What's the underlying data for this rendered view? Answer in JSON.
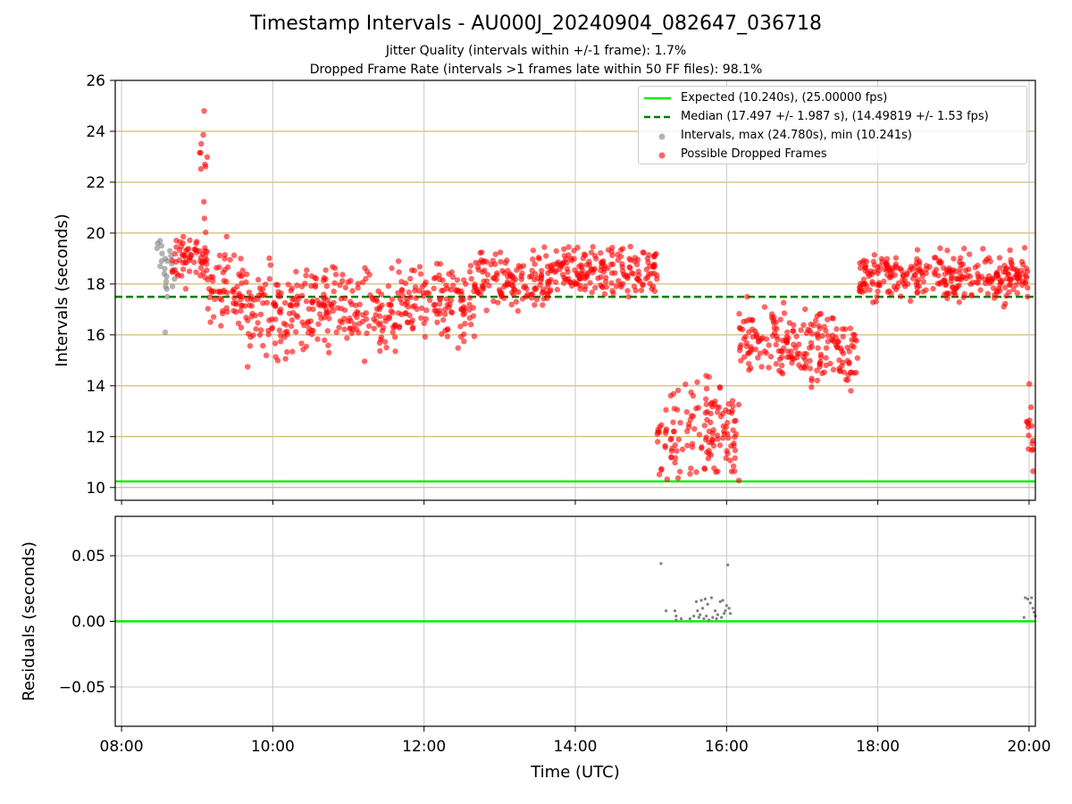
{
  "title": "Timestamp Intervals - AU000J_20240904_082647_036718",
  "subtitle_1": "Jitter Quality (intervals within +/-1 frame): 1.7%",
  "subtitle_2": "Dropped Frame Rate (intervals >1 frames late within 50 FF files): 98.1%",
  "colors": {
    "expected": "#00ee00",
    "median": "#007f00",
    "grid_major": "#c8a850",
    "grid": "#c8c8c8",
    "normal": "#808080",
    "dropped": "#ff0000"
  },
  "chart_data": [
    {
      "type": "scatter",
      "ylabel": "Intervals (seconds)",
      "ylim": [
        9.5,
        26
      ],
      "xlim": [
        "07:55",
        "20:05"
      ],
      "ytick_values": [
        10,
        12,
        14,
        16,
        18,
        20,
        22,
        24,
        26
      ],
      "ytick_labels": [
        "10",
        "12",
        "14",
        "16",
        "18",
        "20",
        "22",
        "24",
        "26"
      ],
      "grid": true,
      "legend_position": "top-right",
      "legend": [
        "Expected (10.240s), (25.00000 fps)",
        "Median (17.497 +/- 1.987 s), (14.49819 +/- 1.53 fps)",
        "Intervals, max (24.780s), min (10.241s)",
        "Possible Dropped Frames"
      ],
      "lines": [
        {
          "name": "Expected",
          "y": 10.24,
          "style": "solid",
          "color": "#00ee00"
        },
        {
          "name": "Median",
          "y": 17.497,
          "style": "dashed",
          "color": "#007f00"
        }
      ],
      "series": [
        {
          "name": "Intervals",
          "color": "#808080",
          "points": [
            [
              "08:28",
              19.6
            ],
            [
              "08:29",
              19.4
            ],
            [
              "08:30",
              19.7
            ],
            [
              "08:30",
              19.2
            ],
            [
              "08:31",
              18.9
            ],
            [
              "08:31",
              19.5
            ],
            [
              "08:32",
              18.7
            ],
            [
              "08:33",
              19.0
            ],
            [
              "08:33",
              18.4
            ],
            [
              "08:34",
              18.1
            ],
            [
              "08:34",
              17.9
            ],
            [
              "08:35",
              18.6
            ],
            [
              "08:35",
              17.5
            ],
            [
              "08:36",
              16.1
            ],
            [
              "08:36",
              18.9
            ],
            [
              "08:37",
              17.8
            ],
            [
              "08:37",
              18.3
            ],
            [
              "08:38",
              19.1
            ],
            [
              "08:39",
              18.5
            ],
            [
              "08:39",
              17.9
            ],
            [
              "08:40",
              19.3
            ],
            [
              "08:40",
              18.8
            ],
            [
              "08:41",
              18.2
            ]
          ]
        },
        {
          "name": "Possible Dropped Frames",
          "color": "#ff0000",
          "segments": [
            {
              "t0": "08:40",
              "t1": "09:08",
              "center": 19.0,
              "spread": 0.9
            },
            {
              "t0": "09:02",
              "t1": "09:08",
              "center": 22.0,
              "spread": 2.6
            },
            {
              "t0": "09:08",
              "t1": "09:40",
              "center": 17.8,
              "spread": 1.3
            },
            {
              "t0": "09:40",
              "t1": "10:40",
              "center": 16.9,
              "spread": 1.4
            },
            {
              "t0": "10:40",
              "t1": "11:40",
              "center": 17.0,
              "spread": 1.4
            },
            {
              "t0": "11:40",
              "t1": "12:40",
              "center": 17.3,
              "spread": 1.3
            },
            {
              "t0": "12:40",
              "t1": "13:40",
              "center": 18.0,
              "spread": 1.0
            },
            {
              "t0": "13:40",
              "t1": "15:05",
              "center": 18.5,
              "spread": 0.8
            },
            {
              "t0": "15:05",
              "t1": "16:10",
              "center": 12.3,
              "spread": 1.6
            },
            {
              "t0": "16:10",
              "t1": "16:50",
              "center": 15.9,
              "spread": 1.3
            },
            {
              "t0": "16:50",
              "t1": "17:45",
              "center": 15.4,
              "spread": 1.3
            },
            {
              "t0": "17:45",
              "t1": "20:00",
              "center": 18.3,
              "spread": 0.8
            },
            {
              "t0": "19:58",
              "t1": "20:05",
              "center": 12.5,
              "spread": 1.8
            }
          ]
        }
      ]
    },
    {
      "type": "scatter",
      "xlabel": "Time (UTC)",
      "ylabel": "Residuals (seconds)",
      "ylim": [
        -0.08,
        0.08
      ],
      "xlim": [
        "07:55",
        "20:05"
      ],
      "ytick_values": [
        -0.05,
        0.0,
        0.05
      ],
      "ytick_labels": [
        "−0.05",
        "0.00",
        "0.05"
      ],
      "xtick_values": [
        "08:00",
        "10:00",
        "12:00",
        "14:00",
        "16:00",
        "18:00",
        "20:00"
      ],
      "xtick_labels": [
        "08:00",
        "10:00",
        "12:00",
        "14:00",
        "16:00",
        "18:00",
        "20:00"
      ],
      "grid": true,
      "lines": [
        {
          "name": "Zero",
          "y": 0.0,
          "style": "solid",
          "color": "#00ee00"
        }
      ],
      "series": [
        {
          "name": "Residuals",
          "color": "#808080",
          "points": [
            [
              "15:08",
              0.044
            ],
            [
              "15:12",
              0.008
            ],
            [
              "15:19",
              0.008
            ],
            [
              "15:20",
              0.004
            ],
            [
              "15:20",
              0.001
            ],
            [
              "15:24",
              0.002
            ],
            [
              "15:31",
              0.002
            ],
            [
              "15:34",
              0.004
            ],
            [
              "15:36",
              0.015
            ],
            [
              "15:37",
              0.008
            ],
            [
              "15:38",
              0.003
            ],
            [
              "15:39",
              0.005
            ],
            [
              "15:40",
              0.016
            ],
            [
              "15:41",
              0.01
            ],
            [
              "15:42",
              0.002
            ],
            [
              "15:43",
              0.017
            ],
            [
              "15:44",
              0.004
            ],
            [
              "15:45",
              0.013
            ],
            [
              "15:46",
              0.001
            ],
            [
              "15:48",
              0.018
            ],
            [
              "15:49",
              0.003
            ],
            [
              "15:51",
              0.008
            ],
            [
              "15:52",
              0.002
            ],
            [
              "15:53",
              0.005
            ],
            [
              "15:55",
              0.015
            ],
            [
              "15:56",
              0.003
            ],
            [
              "15:57",
              0.016
            ],
            [
              "15:58",
              0.006
            ],
            [
              "15:59",
              0.008
            ],
            [
              "16:00",
              0.012
            ],
            [
              "16:01",
              0.043
            ],
            [
              "16:02",
              0.01
            ],
            [
              "16:03",
              0.006
            ],
            [
              "19:56",
              0.003
            ],
            [
              "19:57",
              0.018
            ],
            [
              "19:59",
              0.017
            ],
            [
              "20:01",
              0.014
            ],
            [
              "20:02",
              0.018
            ],
            [
              "20:03",
              0.01
            ],
            [
              "20:04",
              0.007
            ],
            [
              "20:05",
              0.004
            ]
          ]
        }
      ]
    }
  ]
}
